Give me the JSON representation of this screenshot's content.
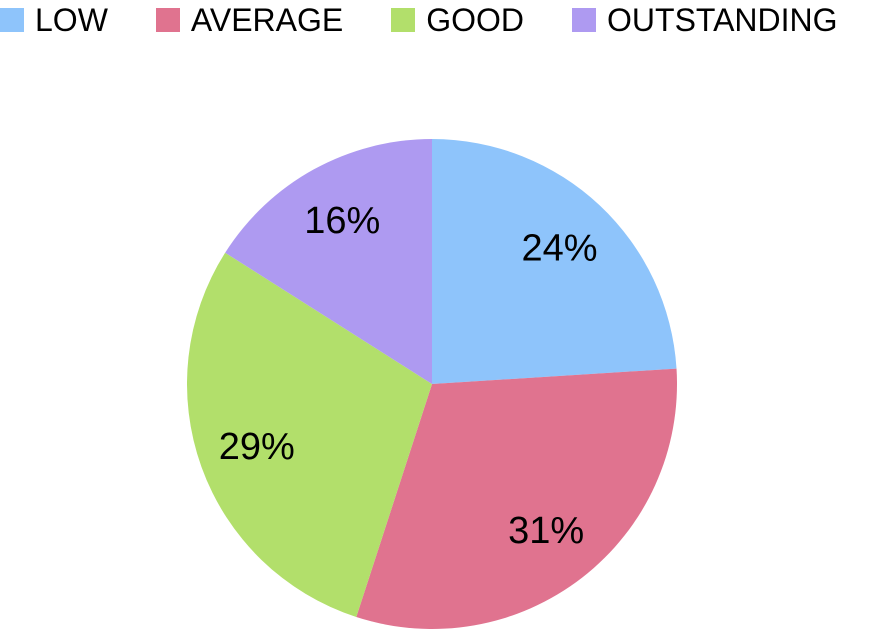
{
  "chart_data": {
    "type": "pie",
    "title": "",
    "categories": [
      "LOW",
      "AVERAGE",
      "GOOD",
      "OUTSTANDING"
    ],
    "values": [
      24,
      31,
      29,
      16
    ],
    "slice_labels": [
      "24%",
      "31%",
      "29%",
      "16%"
    ],
    "colors": [
      "#8EC4FB",
      "#E0738F",
      "#B2DF6B",
      "#AE9AF1"
    ],
    "start_angle_deg": 0,
    "direction": "clockwise",
    "legend_position": "top",
    "label_color": "#000000",
    "background_color": "#FFFFFF"
  },
  "legend": {
    "items": [
      {
        "label": "LOW"
      },
      {
        "label": "AVERAGE"
      },
      {
        "label": "GOOD"
      },
      {
        "label": "OUTSTANDING"
      }
    ]
  }
}
